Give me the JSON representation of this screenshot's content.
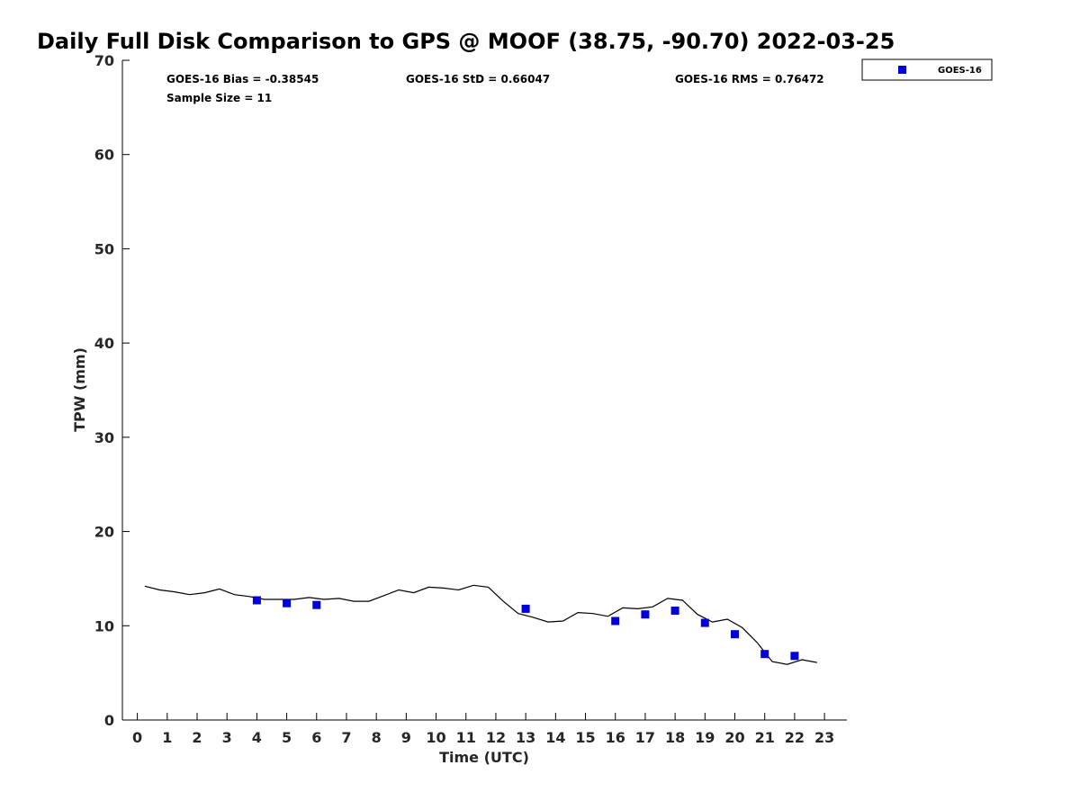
{
  "chart_data": {
    "type": "scatter",
    "title": "Daily Full Disk Comparison to GPS @ MOOF (38.75, -90.70) 2022-03-25",
    "xlabel": "Time (UTC)",
    "ylabel": "TPW (mm)",
    "xlim": [
      -0.5,
      23.75
    ],
    "ylim": [
      0,
      70
    ],
    "x_ticks": [
      "0",
      "1",
      "2",
      "3",
      "4",
      "5",
      "6",
      "7",
      "8",
      "9",
      "10",
      "11",
      "12",
      "13",
      "14",
      "15",
      "16",
      "17",
      "18",
      "19",
      "20",
      "21",
      "22",
      "23"
    ],
    "y_ticks": [
      "0",
      "10",
      "20",
      "30",
      "40",
      "50",
      "60",
      "70"
    ],
    "grid": false,
    "legend_position": "top-right",
    "stats": {
      "bias": "GOES-16 Bias = -0.38545",
      "std": "GOES-16 StD = 0.66047",
      "rms": "GOES-16 RMS = 0.76472",
      "sample": "Sample Size = 11"
    },
    "series": [
      {
        "name": "GOES-16",
        "kind": "marker",
        "color": "#0000dd",
        "marker": "square",
        "x": [
          4,
          5,
          6,
          13,
          16,
          17,
          18,
          19,
          20,
          21,
          22
        ],
        "y": [
          12.7,
          12.4,
          12.2,
          11.8,
          10.5,
          11.2,
          11.6,
          10.3,
          9.1,
          7.0,
          6.8
        ]
      },
      {
        "kind": "line",
        "color": "#000000",
        "x": [
          0.25,
          0.75,
          1.25,
          1.75,
          2.25,
          2.75,
          3.25,
          3.75,
          4.25,
          4.75,
          5.25,
          5.75,
          6.25,
          6.75,
          7.25,
          7.75,
          8.25,
          8.75,
          9.25,
          9.75,
          10.25,
          10.75,
          11.25,
          11.75,
          12.25,
          12.75,
          13.25,
          13.75,
          14.25,
          14.75,
          15.25,
          15.75,
          16.25,
          16.75,
          17.25,
          17.75,
          18.25,
          18.75,
          19.25,
          19.75,
          20.25,
          20.75,
          21.25,
          21.75,
          22.25,
          22.75
        ],
        "y": [
          14.2,
          13.8,
          13.6,
          13.3,
          13.5,
          13.9,
          13.3,
          13.1,
          12.8,
          12.8,
          12.8,
          13.0,
          12.8,
          12.9,
          12.6,
          12.6,
          13.2,
          13.8,
          13.5,
          14.1,
          14.0,
          13.8,
          14.3,
          14.1,
          12.6,
          11.3,
          10.9,
          10.4,
          10.5,
          11.4,
          11.3,
          11.0,
          11.9,
          11.8,
          12.0,
          12.9,
          12.7,
          11.2,
          10.4,
          10.7,
          9.8,
          8.2,
          6.2,
          5.9,
          6.4,
          6.1
        ]
      }
    ]
  }
}
